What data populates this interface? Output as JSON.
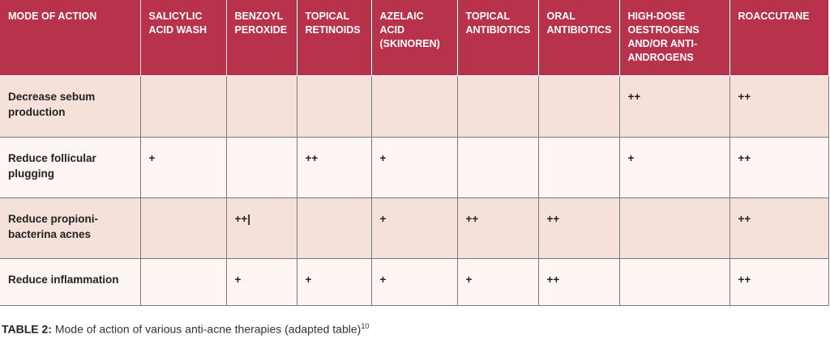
{
  "table": {
    "headers": [
      "MODE OF ACTION",
      "SALICYLIC ACID WASH",
      "BENZOYL PEROXIDE",
      "TOPICAL RETINOIDS",
      "AZELAIC ACID (SKINOREN)",
      "TOPICAL ANTIBIOTICS",
      "ORAL ANTIBIOTICS",
      "HIGH-DOSE OESTROGENS AND/OR ANTI-ANDROGENS",
      "ROACCUTANE"
    ],
    "rows": [
      {
        "cells": [
          "Decrease sebum production",
          "",
          "",
          "",
          "",
          "",
          "",
          "++",
          "++"
        ]
      },
      {
        "cells": [
          "Reduce follicular plugging",
          "+",
          "",
          "++",
          "+",
          "",
          "",
          "+",
          "++"
        ]
      },
      {
        "cells": [
          "Reduce propioni-bacterina acnes",
          "",
          "++|",
          "",
          "+",
          "++",
          "++",
          "",
          "++"
        ]
      },
      {
        "cells": [
          "Reduce inflammation",
          "",
          "+",
          "+",
          "+",
          "+",
          "++",
          "",
          "++"
        ]
      }
    ]
  },
  "caption": {
    "label": "TABLE 2:",
    "text": " Mode of action of various anti-acne therapies (adapted table)",
    "ref": "10"
  },
  "colors": {
    "header_bg": "#b8324b",
    "row_shade": "#f5e0da",
    "row_light": "#fdf6f3"
  }
}
